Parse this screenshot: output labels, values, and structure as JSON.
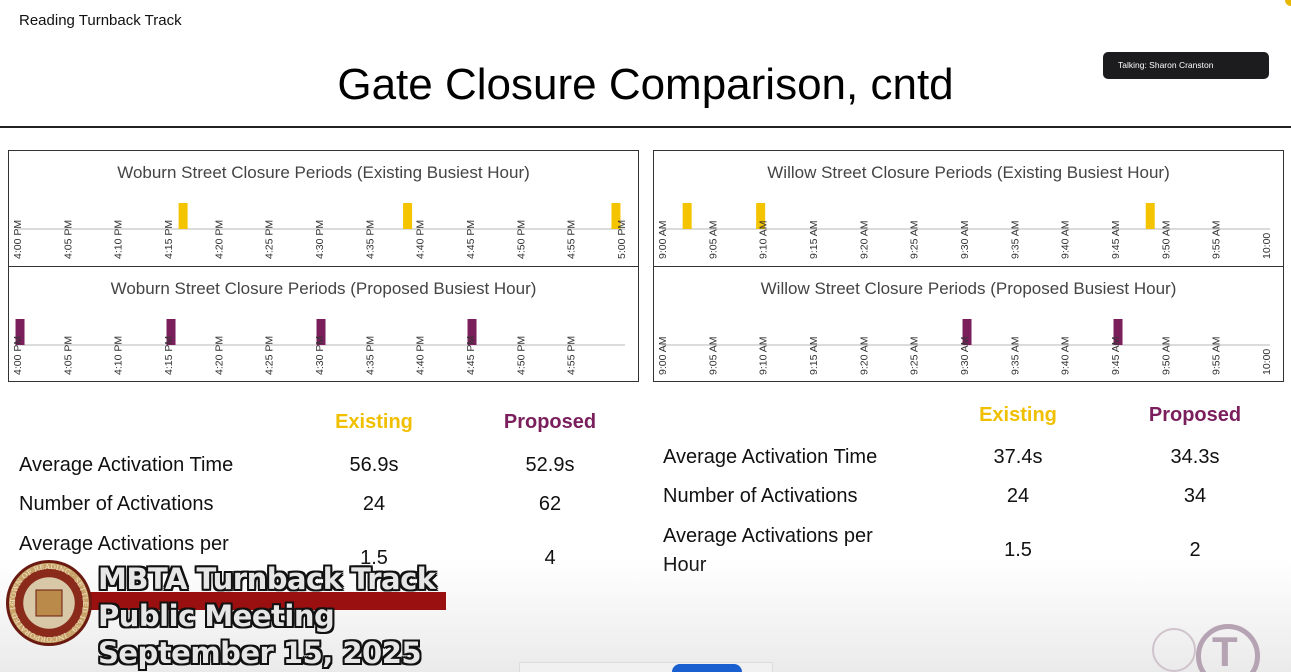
{
  "app_title": "Reading Turnback Track",
  "talking": "Talking: Sharon Cranston",
  "slide_title": "Gate Closure Comparison, cntd",
  "colors": {
    "existing": "#f5c400",
    "proposed": "#7a1f5c"
  },
  "chart_data": [
    {
      "type": "timeline",
      "title": "Woburn Street Closure Periods (Existing Busiest Hour)",
      "color": "#f5c400",
      "tick_labels": [
        "4:00 PM",
        "4:05 PM",
        "4:10 PM",
        "4:15 PM",
        "4:20 PM",
        "4:25 PM",
        "4:30 PM",
        "4:35 PM",
        "4:40 PM",
        "4:45 PM",
        "4:50 PM",
        "4:55 PM",
        "5:00 PM"
      ],
      "xlim_minutes": [
        0,
        60
      ],
      "events_minutes": [
        16.5,
        38.8,
        59.5
      ]
    },
    {
      "type": "timeline",
      "title": "Woburn Street Closure Periods (Proposed Busiest Hour)",
      "color": "#7a1f5c",
      "tick_labels": [
        "4:00 PM",
        "4:05 PM",
        "4:10 PM",
        "4:15 PM",
        "4:20 PM",
        "4:25 PM",
        "4:30 PM",
        "4:35 PM",
        "4:40 PM",
        "4:45 PM",
        "4:50 PM",
        "4:55 PM"
      ],
      "xlim_minutes": [
        0,
        60
      ],
      "events_minutes": [
        0.3,
        15.3,
        30.2,
        45.2
      ]
    },
    {
      "type": "timeline",
      "title": "Willow Street Closure Periods (Existing Busiest Hour)",
      "color": "#f5c400",
      "tick_labels": [
        "9:00 AM",
        "9:05 AM",
        "9:10 AM",
        "9:15 AM",
        "9:20 AM",
        "9:25 AM",
        "9:30 AM",
        "9:35 AM",
        "9:40 AM",
        "9:45 AM",
        "9:50 AM",
        "9:55 AM",
        "10:00"
      ],
      "xlim_minutes": [
        0,
        60
      ],
      "events_minutes": [
        2.5,
        9.8,
        48.5
      ]
    },
    {
      "type": "timeline",
      "title": "Willow Street Closure Periods (Proposed Busiest Hour)",
      "color": "#7a1f5c",
      "tick_labels": [
        "9:00 AM",
        "9:05 AM",
        "9:10 AM",
        "9:15 AM",
        "9:20 AM",
        "9:25 AM",
        "9:30 AM",
        "9:35 AM",
        "9:40 AM",
        "9:45 AM",
        "9:50 AM",
        "9:55 AM",
        "10:00"
      ],
      "xlim_minutes": [
        0,
        60
      ],
      "events_minutes": [
        30.3,
        45.3
      ]
    }
  ],
  "left_stats": {
    "existing_header": "Existing",
    "proposed_header": "Proposed",
    "rows": [
      {
        "label": "Average Activation Time",
        "existing": "56.9s",
        "proposed": "52.9s"
      },
      {
        "label": "Number of Activations",
        "existing": "24",
        "proposed": "62"
      },
      {
        "label": "Average Activations per",
        "existing": "1.5",
        "proposed": "4"
      }
    ]
  },
  "right_stats": {
    "existing_header": "Existing",
    "proposed_header": "Proposed",
    "rows": [
      {
        "label": "Average Activation Time",
        "existing": "37.4s",
        "proposed": "34.3s"
      },
      {
        "label": "Number of Activations",
        "existing": "24",
        "proposed": "34"
      },
      {
        "label": "Average Activations per Hour",
        "label_line1": "Average Activations per",
        "label_line2": "Hour",
        "existing": "1.5",
        "proposed": "2"
      }
    ]
  },
  "overlay": {
    "line1": "MBTA Turnback Track",
    "line2": "Public Meeting",
    "line3": "September 15, 2025",
    "seal_text": "TOWN OF READING · SETTLED 1639 · INCORPORATED 1644"
  }
}
